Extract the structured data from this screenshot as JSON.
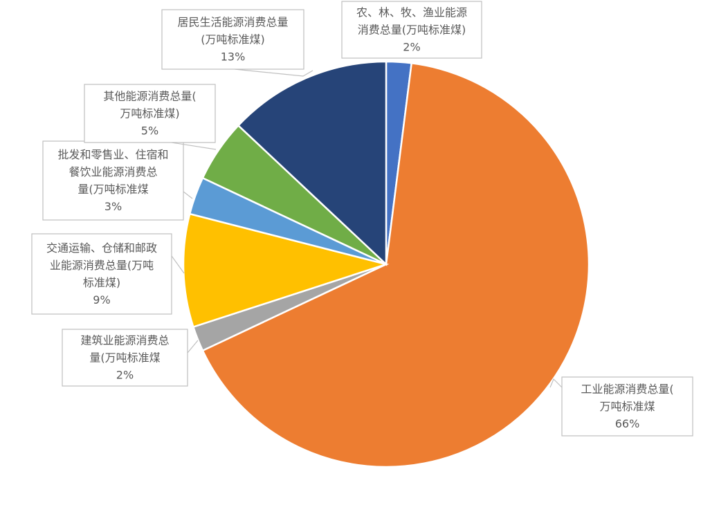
{
  "chart_data": {
    "type": "pie",
    "title": "",
    "legend": "none",
    "slices": [
      {
        "name": "农、林、牧、渔业能源消费总量(万吨标准煤)",
        "value": 2,
        "label": "2%",
        "color": "#4472C4"
      },
      {
        "name": "工业能源消费总量(万吨标准煤)",
        "value": 66,
        "label": "66%",
        "color": "#ED7D31"
      },
      {
        "name": "建筑业能源消费总量(万吨标准煤)",
        "value": 2,
        "label": "2%",
        "color": "#A5A5A5"
      },
      {
        "name": "交通运输、仓储和邮政业能源消费总量(万吨标准煤)",
        "value": 9,
        "label": "9%",
        "color": "#FFC000"
      },
      {
        "name": "批发和零售业、住宿和餐饮业能源消费总量(万吨标准煤)",
        "value": 3,
        "label": "3%",
        "color": "#5B9BD5"
      },
      {
        "name": "其他能源消费总量(万吨标准煤)",
        "value": 5,
        "label": "5%",
        "color": "#70AD47"
      },
      {
        "name": "居民生活能源消费总量(万吨标准煤)",
        "value": 13,
        "label": "13%",
        "color": "#264478"
      }
    ]
  }
}
